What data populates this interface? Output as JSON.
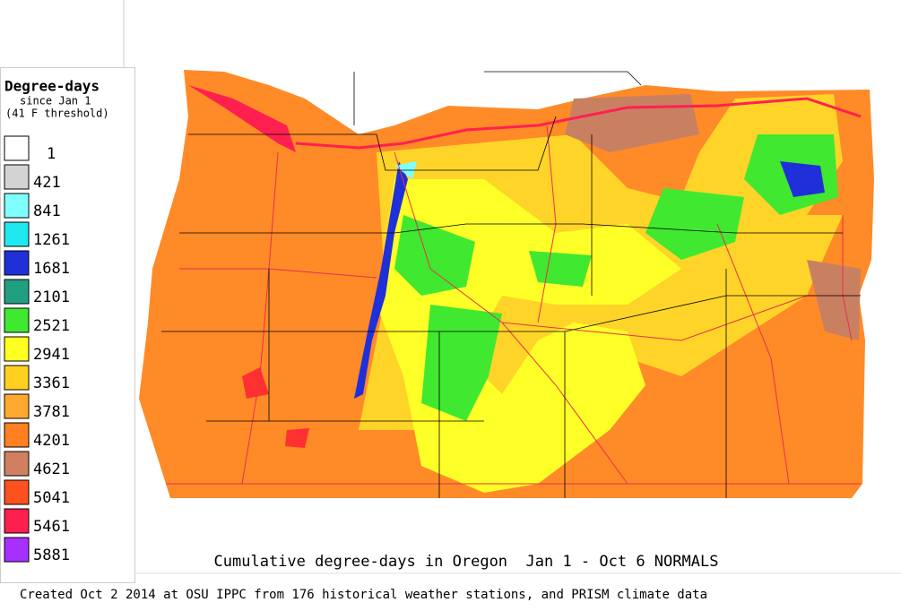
{
  "legend": {
    "title": "Degree-days",
    "subtitle": "since Jan 1",
    "note": "(41 F threshold)",
    "items": [
      {
        "label": "1",
        "color": "#ffffff"
      },
      {
        "label": "421",
        "color": "#d3d3d3"
      },
      {
        "label": "841",
        "color": "#80ffff"
      },
      {
        "label": "1261",
        "color": "#20e8f0"
      },
      {
        "label": "1681",
        "color": "#2030d8"
      },
      {
        "label": "2101",
        "color": "#20a080"
      },
      {
        "label": "2521",
        "color": "#40e830"
      },
      {
        "label": "2941",
        "color": "#ffff20"
      },
      {
        "label": "3361",
        "color": "#ffd020"
      },
      {
        "label": "3781",
        "color": "#ffa830"
      },
      {
        "label": "4201",
        "color": "#ff8020"
      },
      {
        "label": "4621",
        "color": "#d08060"
      },
      {
        "label": "5041",
        "color": "#ff5020"
      },
      {
        "label": "5461",
        "color": "#ff2050"
      },
      {
        "label": "5881",
        "color": "#a830ff"
      }
    ]
  },
  "map": {
    "title": "Cumulative degree-days in Oregon  Jan 1 - Oct 6 NORMALS"
  },
  "footer": "Created Oct 2 2014 at OSU IPPC from 176 historical weather stations, and PRISM climate data"
}
